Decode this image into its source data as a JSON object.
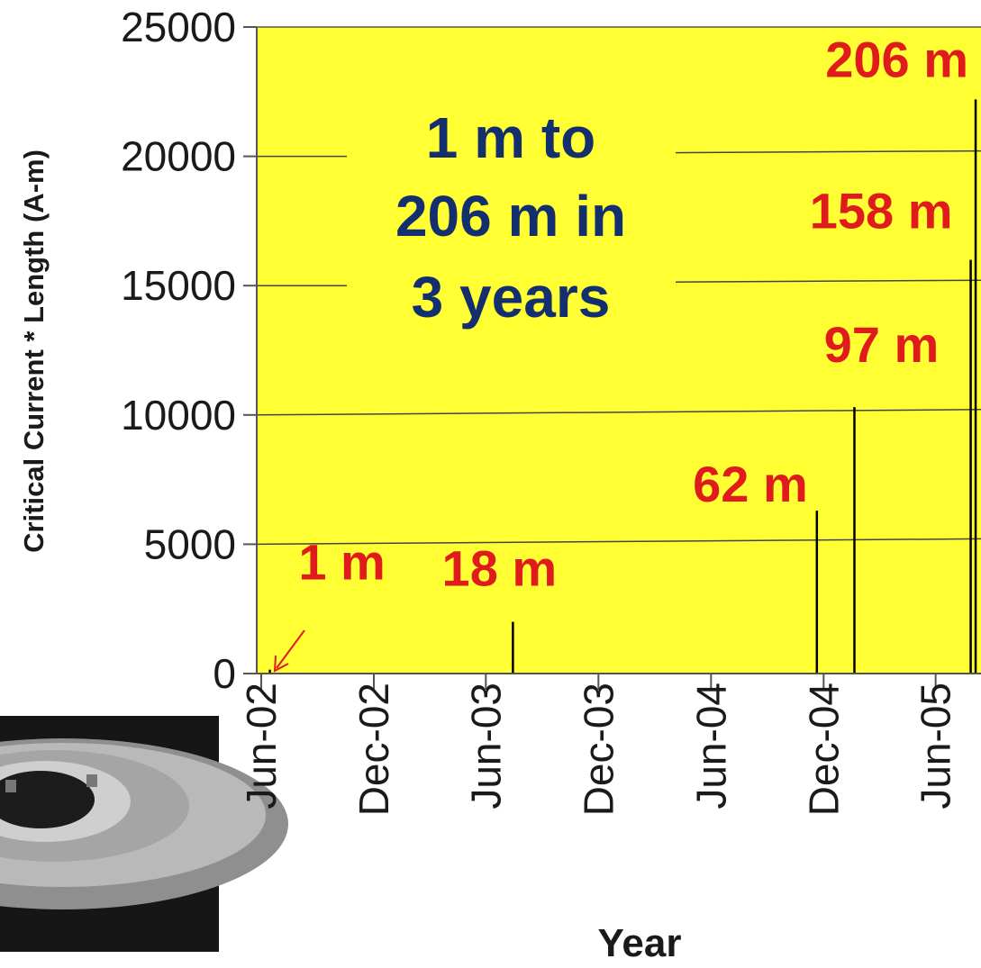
{
  "colors": {
    "plot_background": "#ffff33",
    "bar": "#000000",
    "annotation": "#e01b1b",
    "headline": "#142f6e",
    "grid": "#444444"
  },
  "headline_lines": [
    "1 m to",
    "206 m in",
    "3 years"
  ],
  "chart_data": {
    "type": "bar",
    "xlabel": "Year",
    "ylabel": "Critical Current * Length (A-m)",
    "ylim": [
      0,
      25000
    ],
    "yticks": [
      "0",
      "5000",
      "10000",
      "15000",
      "20000",
      "25000"
    ],
    "x_axis": "date",
    "xlim": [
      "2002-06-01",
      "2005-09-01"
    ],
    "xticks": [
      "Jun-02",
      "Dec-02",
      "Jun-03",
      "Dec-03",
      "Jun-04",
      "Dec-04",
      "Jun-05"
    ],
    "grid": "horizontal",
    "points": [
      {
        "date": "2002-06-15",
        "value": 150,
        "label": "1 m"
      },
      {
        "date": "2003-07-15",
        "value": 2000,
        "label": "18 m"
      },
      {
        "date": "2004-11-20",
        "value": 6300,
        "label": "62 m"
      },
      {
        "date": "2005-01-20",
        "value": 10300,
        "label": "97 m"
      },
      {
        "date": "2005-07-28",
        "value": 16000,
        "label": "158 m"
      },
      {
        "date": "2005-08-05",
        "value": 22200,
        "label": "206 m"
      }
    ]
  }
}
